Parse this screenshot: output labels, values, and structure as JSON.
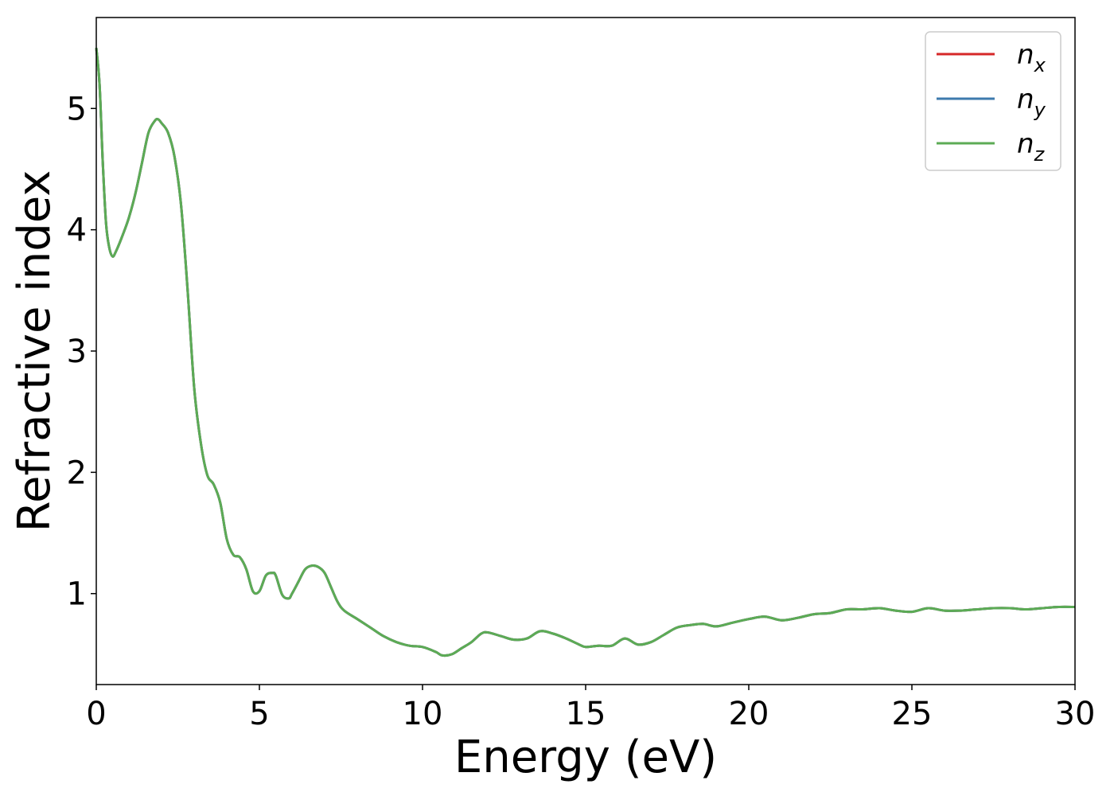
{
  "chart_data": {
    "type": "line",
    "xlabel": "Energy (eV)",
    "ylabel": "Refractive index",
    "xlim": [
      0,
      30
    ],
    "ylim": [
      0.25,
      5.75
    ],
    "xticks": [
      0,
      5,
      10,
      15,
      20,
      25,
      30
    ],
    "yticks": [
      1,
      2,
      3,
      4,
      5
    ],
    "grid": false,
    "legend_position": "top-right",
    "series": [
      {
        "name": "n_x",
        "label_main": "n",
        "label_sub": "x",
        "color": "#d62728",
        "x": [
          0,
          0.1,
          0.2,
          0.3,
          0.4,
          0.5,
          0.6,
          0.8,
          1.0,
          1.2,
          1.4,
          1.6,
          1.8,
          1.9,
          2.0,
          2.2,
          2.4,
          2.6,
          2.8,
          3.0,
          3.2,
          3.4,
          3.6,
          3.8,
          4.0,
          4.2,
          4.4,
          4.6,
          4.8,
          5.0,
          5.2,
          5.4,
          5.5,
          5.7,
          5.9,
          6.0,
          6.2,
          6.4,
          6.6,
          6.8,
          7.0,
          7.2,
          7.4,
          7.6,
          8.0,
          8.4,
          8.8,
          9.2,
          9.6,
          10.0,
          10.4,
          10.6,
          10.9,
          11.2,
          11.5,
          11.8,
          12.0,
          12.4,
          12.8,
          13.2,
          13.6,
          14.0,
          14.4,
          14.8,
          15.0,
          15.4,
          15.8,
          16.2,
          16.6,
          17.0,
          17.4,
          17.8,
          18.2,
          18.6,
          19.0,
          19.5,
          20.0,
          20.5,
          21.0,
          21.5,
          22.0,
          22.5,
          23.0,
          23.5,
          24.0,
          24.5,
          25.0,
          25.5,
          26.0,
          26.5,
          27.0,
          27.5,
          28.0,
          28.5,
          29.0,
          29.5,
          30.0
        ],
        "y": [
          5.5,
          5.2,
          4.55,
          4.05,
          3.85,
          3.78,
          3.82,
          3.95,
          4.1,
          4.3,
          4.55,
          4.8,
          4.9,
          4.91,
          4.88,
          4.8,
          4.6,
          4.2,
          3.5,
          2.7,
          2.25,
          1.98,
          1.9,
          1.75,
          1.45,
          1.32,
          1.3,
          1.2,
          1.02,
          1.02,
          1.15,
          1.17,
          1.15,
          0.99,
          0.96,
          1.0,
          1.1,
          1.2,
          1.23,
          1.22,
          1.17,
          1.05,
          0.93,
          0.86,
          0.79,
          0.72,
          0.65,
          0.6,
          0.57,
          0.56,
          0.52,
          0.49,
          0.5,
          0.55,
          0.6,
          0.67,
          0.68,
          0.65,
          0.62,
          0.63,
          0.69,
          0.67,
          0.63,
          0.58,
          0.56,
          0.57,
          0.57,
          0.63,
          0.58,
          0.6,
          0.66,
          0.72,
          0.74,
          0.75,
          0.73,
          0.76,
          0.79,
          0.81,
          0.78,
          0.8,
          0.83,
          0.84,
          0.87,
          0.87,
          0.88,
          0.86,
          0.85,
          0.88,
          0.86,
          0.86,
          0.87,
          0.88,
          0.88,
          0.87,
          0.88,
          0.89,
          0.89
        ]
      },
      {
        "name": "n_y",
        "label_main": "n",
        "label_sub": "y",
        "color": "#3d7aad",
        "x": [
          0,
          0.1,
          0.2,
          0.3,
          0.4,
          0.5,
          0.6,
          0.8,
          1.0,
          1.2,
          1.4,
          1.6,
          1.8,
          1.9,
          2.0,
          2.2,
          2.4,
          2.6,
          2.8,
          3.0,
          3.2,
          3.4,
          3.6,
          3.8,
          4.0,
          4.2,
          4.4,
          4.6,
          4.8,
          5.0,
          5.2,
          5.4,
          5.5,
          5.7,
          5.9,
          6.0,
          6.2,
          6.4,
          6.6,
          6.8,
          7.0,
          7.2,
          7.4,
          7.6,
          8.0,
          8.4,
          8.8,
          9.2,
          9.6,
          10.0,
          10.4,
          10.6,
          10.9,
          11.2,
          11.5,
          11.8,
          12.0,
          12.4,
          12.8,
          13.2,
          13.6,
          14.0,
          14.4,
          14.8,
          15.0,
          15.4,
          15.8,
          16.2,
          16.6,
          17.0,
          17.4,
          17.8,
          18.2,
          18.6,
          19.0,
          19.5,
          20.0,
          20.5,
          21.0,
          21.5,
          22.0,
          22.5,
          23.0,
          23.5,
          24.0,
          24.5,
          25.0,
          25.5,
          26.0,
          26.5,
          27.0,
          27.5,
          28.0,
          28.5,
          29.0,
          29.5,
          30.0
        ],
        "y": [
          5.5,
          5.2,
          4.55,
          4.05,
          3.85,
          3.78,
          3.82,
          3.95,
          4.1,
          4.3,
          4.55,
          4.8,
          4.9,
          4.91,
          4.88,
          4.8,
          4.6,
          4.2,
          3.5,
          2.7,
          2.25,
          1.98,
          1.9,
          1.75,
          1.45,
          1.32,
          1.3,
          1.2,
          1.02,
          1.02,
          1.15,
          1.17,
          1.15,
          0.99,
          0.96,
          1.0,
          1.1,
          1.2,
          1.23,
          1.22,
          1.17,
          1.05,
          0.93,
          0.86,
          0.79,
          0.72,
          0.65,
          0.6,
          0.57,
          0.56,
          0.52,
          0.49,
          0.5,
          0.55,
          0.6,
          0.67,
          0.68,
          0.65,
          0.62,
          0.63,
          0.69,
          0.67,
          0.63,
          0.58,
          0.56,
          0.57,
          0.57,
          0.63,
          0.58,
          0.6,
          0.66,
          0.72,
          0.74,
          0.75,
          0.73,
          0.76,
          0.79,
          0.81,
          0.78,
          0.8,
          0.83,
          0.84,
          0.87,
          0.87,
          0.88,
          0.86,
          0.85,
          0.88,
          0.86,
          0.86,
          0.87,
          0.88,
          0.88,
          0.87,
          0.88,
          0.89,
          0.89
        ]
      },
      {
        "name": "n_z",
        "label_main": "n",
        "label_sub": "z",
        "color": "#5cab55",
        "x": [
          0,
          0.1,
          0.2,
          0.3,
          0.4,
          0.5,
          0.6,
          0.8,
          1.0,
          1.2,
          1.4,
          1.6,
          1.8,
          1.9,
          2.0,
          2.2,
          2.4,
          2.6,
          2.8,
          3.0,
          3.2,
          3.4,
          3.6,
          3.8,
          4.0,
          4.2,
          4.4,
          4.6,
          4.8,
          5.0,
          5.2,
          5.4,
          5.5,
          5.7,
          5.9,
          6.0,
          6.2,
          6.4,
          6.6,
          6.8,
          7.0,
          7.2,
          7.4,
          7.6,
          8.0,
          8.4,
          8.8,
          9.2,
          9.6,
          10.0,
          10.4,
          10.6,
          10.9,
          11.2,
          11.5,
          11.8,
          12.0,
          12.4,
          12.8,
          13.2,
          13.6,
          14.0,
          14.4,
          14.8,
          15.0,
          15.4,
          15.8,
          16.2,
          16.6,
          17.0,
          17.4,
          17.8,
          18.2,
          18.6,
          19.0,
          19.5,
          20.0,
          20.5,
          21.0,
          21.5,
          22.0,
          22.5,
          23.0,
          23.5,
          24.0,
          24.5,
          25.0,
          25.5,
          26.0,
          26.5,
          27.0,
          27.5,
          28.0,
          28.5,
          29.0,
          29.5,
          30.0
        ],
        "y": [
          5.5,
          5.2,
          4.55,
          4.05,
          3.85,
          3.78,
          3.82,
          3.95,
          4.1,
          4.3,
          4.55,
          4.8,
          4.9,
          4.91,
          4.88,
          4.8,
          4.6,
          4.2,
          3.5,
          2.7,
          2.25,
          1.98,
          1.9,
          1.75,
          1.45,
          1.32,
          1.3,
          1.2,
          1.02,
          1.02,
          1.15,
          1.17,
          1.15,
          0.99,
          0.96,
          1.0,
          1.1,
          1.2,
          1.23,
          1.22,
          1.17,
          1.05,
          0.93,
          0.86,
          0.79,
          0.72,
          0.65,
          0.6,
          0.57,
          0.56,
          0.52,
          0.49,
          0.5,
          0.55,
          0.6,
          0.67,
          0.68,
          0.65,
          0.62,
          0.63,
          0.69,
          0.67,
          0.63,
          0.58,
          0.56,
          0.57,
          0.57,
          0.63,
          0.58,
          0.6,
          0.66,
          0.72,
          0.74,
          0.75,
          0.73,
          0.76,
          0.79,
          0.81,
          0.78,
          0.8,
          0.83,
          0.84,
          0.87,
          0.87,
          0.88,
          0.86,
          0.85,
          0.88,
          0.86,
          0.86,
          0.87,
          0.88,
          0.88,
          0.87,
          0.88,
          0.89,
          0.89
        ]
      }
    ]
  }
}
